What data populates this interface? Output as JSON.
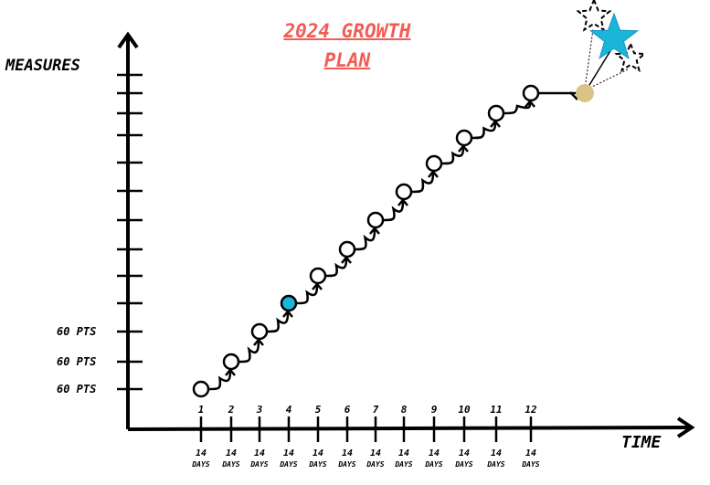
{
  "title_line1": "2024 GROWTH",
  "title_line2": "PLAN",
  "y_axis_label": "MEASURES",
  "x_axis_label": "TIME",
  "y_labels": [
    "60 PTS",
    "60 PTS",
    "60 PTS"
  ],
  "steps": [
    "1",
    "2",
    "3",
    "4",
    "5",
    "6",
    "7",
    "8",
    "9",
    "10",
    "11",
    "12"
  ],
  "step_duration": "14",
  "step_unit": "DAYS",
  "colors": {
    "title": "#f25c54",
    "highlight": "#1ab6d9",
    "goal": "#d9c486",
    "star": "#1ab6d9"
  },
  "highlighted_step": 4
}
